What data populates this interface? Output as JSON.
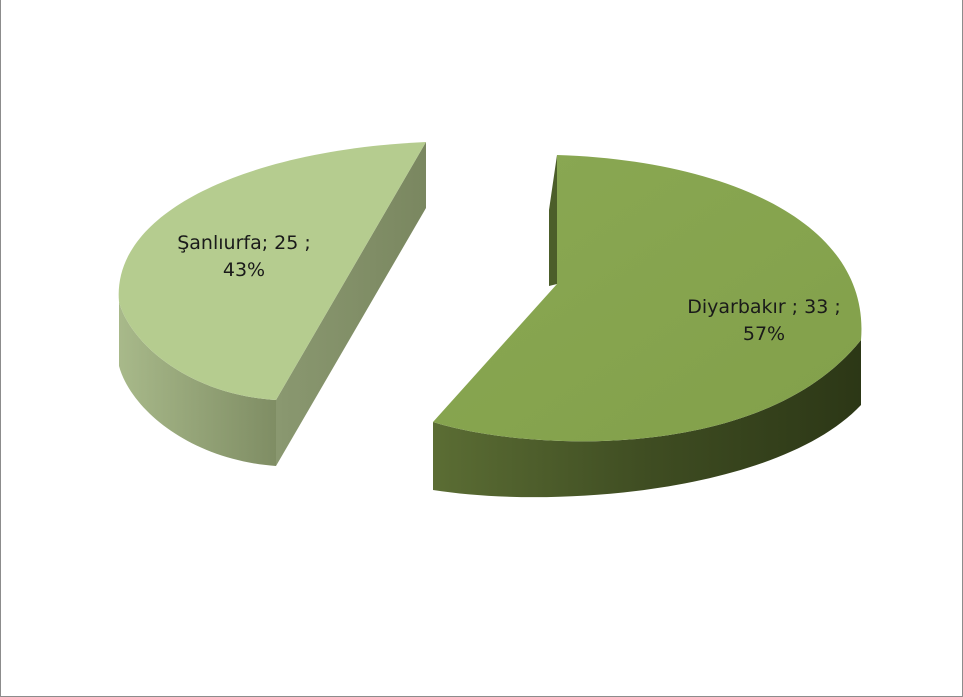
{
  "chart_data": {
    "type": "pie",
    "style": "3d-exploded",
    "slices": [
      {
        "label": "Şanlıurfa",
        "value": 25,
        "percent": "43%",
        "value_text": "25"
      },
      {
        "label": "Diyarbakır",
        "value": 33,
        "percent": "57%",
        "value_text": "33"
      }
    ],
    "colors": {
      "Şanlıurfa": {
        "top": "#b5cc8f",
        "side": "#8c9c6e"
      },
      "Diyarbakır": {
        "top": "#86a34e",
        "side": "#3e4c22"
      }
    },
    "legend": "none",
    "title": ""
  }
}
